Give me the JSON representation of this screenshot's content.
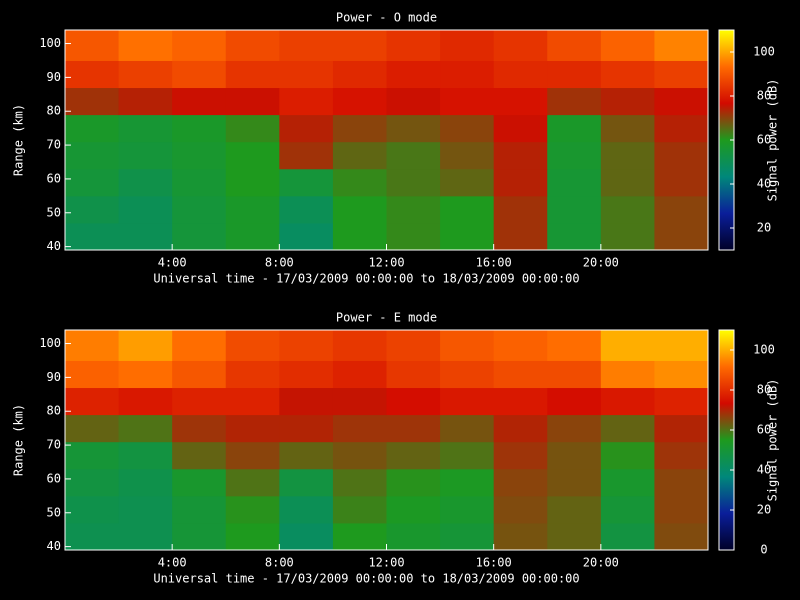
{
  "chart_data": [
    {
      "type": "heatmap",
      "title": "Power - O mode",
      "x_label": "Universal time - 17/03/2009 00:00:00 to 18/03/2009 00:00:00",
      "y_label": "Range (km)",
      "colorbar_label": "Signal power (dB)",
      "xlim": [
        0,
        24
      ],
      "xticks": [
        {
          "value": 4,
          "label": "4:00"
        },
        {
          "value": 8,
          "label": "8:00"
        },
        {
          "value": 12,
          "label": "12:00"
        },
        {
          "value": 16,
          "label": "16:00"
        },
        {
          "value": 20,
          "label": "20:00"
        }
      ],
      "ylim": [
        39,
        104
      ],
      "yticks": [
        40,
        50,
        60,
        70,
        80,
        90,
        100
      ],
      "zlim": [
        10,
        110
      ],
      "zticks": [
        20,
        40,
        60,
        80,
        100
      ],
      "colormap": [
        "#000028",
        "#0a1e9a",
        "#00887a",
        "#1e9a1e",
        "#d20a00",
        "#ff6a00",
        "#ffff00"
      ],
      "x_edges": [
        0,
        2,
        4,
        6,
        8,
        10,
        12,
        14,
        16,
        18,
        20,
        22,
        24
      ],
      "y_edges": [
        39,
        47,
        55,
        63,
        71,
        79,
        87,
        95,
        104
      ],
      "z": [
        [
          50,
          50,
          55,
          58,
          48,
          60,
          62,
          60,
          72,
          56,
          64,
          70
        ],
        [
          52,
          50,
          55,
          58,
          50,
          60,
          62,
          60,
          72,
          56,
          64,
          70
        ],
        [
          55,
          52,
          56,
          60,
          55,
          62,
          64,
          66,
          74,
          56,
          66,
          72
        ],
        [
          56,
          55,
          57,
          60,
          72,
          66,
          64,
          68,
          74,
          57,
          66,
          72
        ],
        [
          58,
          56,
          58,
          62,
          74,
          70,
          68,
          70,
          76,
          58,
          68,
          74
        ],
        [
          72,
          74,
          76,
          76,
          80,
          78,
          76,
          78,
          78,
          72,
          74,
          76
        ],
        [
          84,
          86,
          88,
          84,
          84,
          82,
          80,
          80,
          82,
          82,
          84,
          86
        ],
        [
          90,
          94,
          92,
          88,
          86,
          86,
          84,
          82,
          84,
          88,
          92,
          96
        ]
      ]
    },
    {
      "type": "heatmap",
      "title": "Power - E mode",
      "x_label": "Universal time - 17/03/2009 00:00:00 to 18/03/2009 00:00:00",
      "y_label": "Range (km)",
      "colorbar_label": "Signal power (dB)",
      "xlim": [
        0,
        24
      ],
      "xticks": [
        {
          "value": 4,
          "label": "4:00"
        },
        {
          "value": 8,
          "label": "8:00"
        },
        {
          "value": 12,
          "label": "12:00"
        },
        {
          "value": 16,
          "label": "16:00"
        },
        {
          "value": 20,
          "label": "20:00"
        }
      ],
      "ylim": [
        39,
        104
      ],
      "yticks": [
        40,
        50,
        60,
        70,
        80,
        90,
        100
      ],
      "zlim": [
        0,
        110
      ],
      "zticks": [
        0,
        20,
        40,
        60,
        80,
        100
      ],
      "colormap": [
        "#000028",
        "#0a1e9a",
        "#00887a",
        "#1e9a1e",
        "#d20a00",
        "#ff6a00",
        "#ffff00"
      ],
      "x_edges": [
        0,
        2,
        4,
        6,
        8,
        10,
        12,
        14,
        16,
        18,
        20,
        22,
        24
      ],
      "y_edges": [
        39,
        47,
        55,
        63,
        71,
        79,
        87,
        95,
        104
      ],
      "z": [
        [
          45,
          45,
          50,
          55,
          42,
          55,
          52,
          50,
          64,
          62,
          48,
          65
        ],
        [
          46,
          45,
          50,
          56,
          44,
          58,
          54,
          52,
          65,
          62,
          50,
          66
        ],
        [
          48,
          46,
          52,
          60,
          48,
          60,
          56,
          54,
          66,
          64,
          52,
          66
        ],
        [
          50,
          48,
          62,
          66,
          62,
          64,
          62,
          60,
          68,
          64,
          56,
          68
        ],
        [
          62,
          60,
          68,
          70,
          70,
          68,
          68,
          64,
          70,
          66,
          62,
          70
        ],
        [
          78,
          76,
          78,
          78,
          72,
          72,
          74,
          76,
          76,
          74,
          76,
          78
        ],
        [
          90,
          92,
          88,
          82,
          80,
          78,
          82,
          84,
          86,
          86,
          94,
          96
        ],
        [
          94,
          98,
          92,
          86,
          84,
          82,
          84,
          88,
          90,
          92,
          100,
          100
        ]
      ]
    }
  ]
}
